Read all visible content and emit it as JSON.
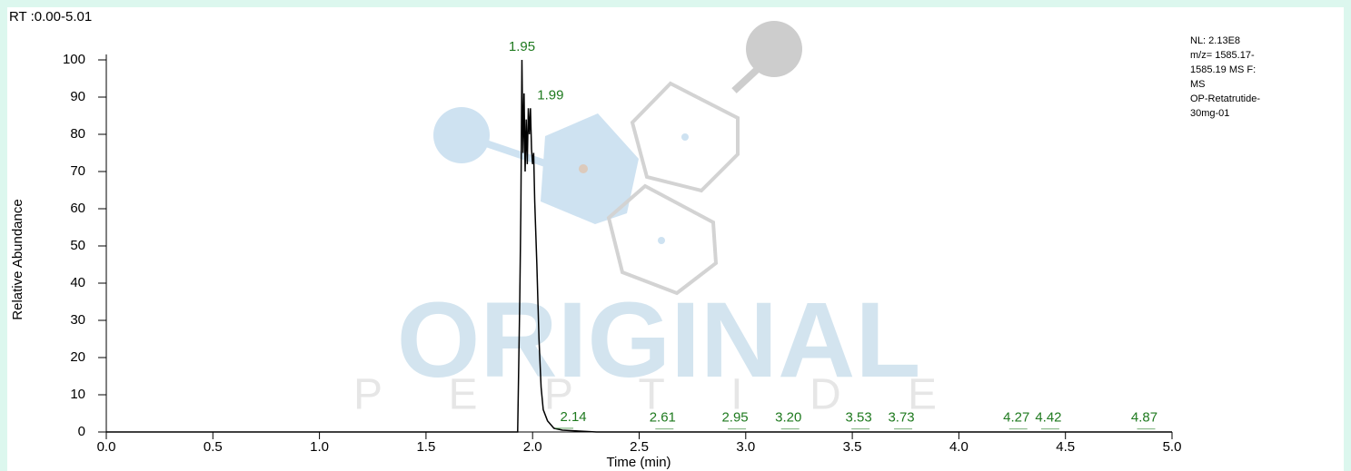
{
  "chart_data": {
    "type": "line",
    "header": "RT :0.00-5.01",
    "ylabel": "Relative Abundance",
    "xlabel": "Time (min)",
    "info": [
      "NL: 2.13E8",
      "m/z= 1585.17-",
      "1585.19 MS  F:",
      "MS",
      "OP-Retatrutide-",
      "30mg-01"
    ],
    "watermark": [
      "ORIGINAL",
      "P E P T I D E"
    ],
    "xlim": [
      0,
      5
    ],
    "ylim": [
      0,
      100
    ],
    "xticks": [
      {
        "value": 0,
        "label": "0.0"
      },
      0.5,
      {
        "value": 1,
        "label": "1.0"
      },
      1.5,
      {
        "value": 2,
        "label": "2.0"
      },
      2.5,
      {
        "value": 3,
        "label": "3.0"
      },
      3.5,
      {
        "value": 4,
        "label": "4.0"
      },
      4.5,
      {
        "value": 5,
        "label": "5.0"
      }
    ],
    "yticks": [
      0,
      10,
      20,
      30,
      40,
      50,
      60,
      70,
      80,
      90,
      100
    ],
    "x": [
      0,
      1.93,
      1.94,
      1.945,
      1.95,
      1.955,
      1.96,
      1.965,
      1.97,
      1.975,
      1.98,
      1.985,
      1.99,
      1.995,
      2.0,
      2.005,
      2.01,
      2.02,
      2.03,
      2.04,
      2.05,
      2.07,
      2.1,
      2.14,
      2.2,
      2.3,
      5
    ],
    "series": [
      {
        "color": "#000000",
        "values": [
          0,
          0,
          36,
          60,
          100,
          75,
          91,
          70,
          84,
          72,
          87,
          80,
          87,
          76,
          72,
          75,
          62,
          45,
          25,
          12,
          6,
          3,
          1,
          0.5,
          0.3,
          0,
          0
        ]
      }
    ],
    "peak_color": "#1f7a1f",
    "peaks": [
      {
        "value": 1.95,
        "height": 100,
        "label": "1.95"
      },
      {
        "value": 1.99,
        "height": 87,
        "label": "1.99"
      },
      {
        "value": 2.14,
        "height": 0.5,
        "label": "2.14"
      },
      {
        "value": 2.61,
        "height": 0.3,
        "label": "2.61"
      },
      {
        "value": 2.95,
        "height": 0.3,
        "label": "2.95"
      },
      {
        "value": 3.2,
        "height": 0.3,
        "label": "3.20"
      },
      {
        "value": 3.53,
        "height": 0.3,
        "label": "3.53"
      },
      {
        "value": 3.73,
        "height": 0.3,
        "label": "3.73"
      },
      {
        "value": 4.27,
        "height": 0.3,
        "label": "4.27"
      },
      {
        "value": 4.42,
        "height": 0.3,
        "label": "4.42"
      },
      {
        "value": 4.87,
        "height": 0.3,
        "label": "4.87"
      }
    ]
  }
}
